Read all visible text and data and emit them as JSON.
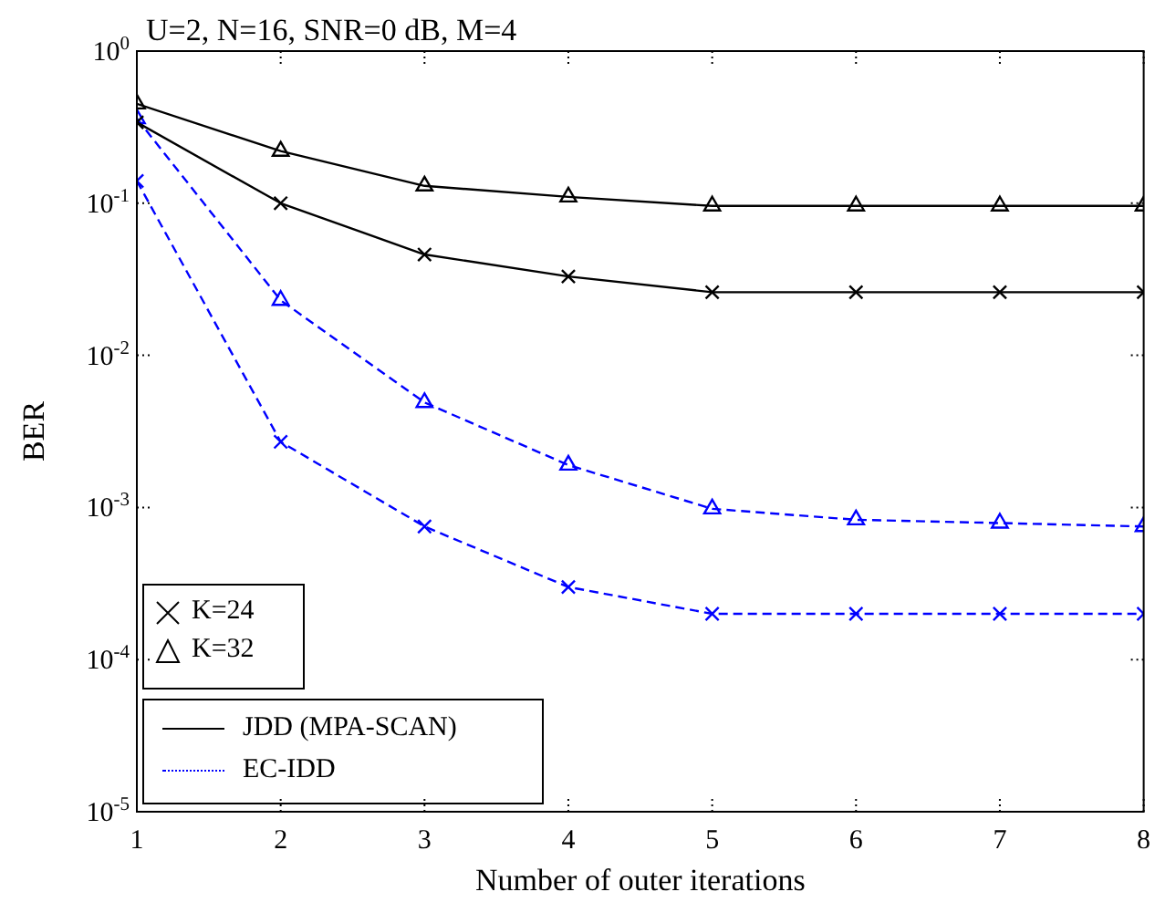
{
  "chart_data": {
    "type": "line",
    "title": "U=2, N=16, SNR=0 dB, M=4",
    "xlabel": "Number of outer iterations",
    "ylabel": "BER",
    "x": [
      1,
      2,
      3,
      4,
      5,
      6,
      7,
      8
    ],
    "series": [
      {
        "color": "#000000",
        "marker": "cross",
        "line_style": "solid",
        "values": [
          0.34,
          0.1,
          0.046,
          0.033,
          0.026,
          0.026,
          0.026,
          0.026
        ]
      },
      {
        "color": "#000000",
        "marker": "triangle",
        "line_style": "solid",
        "values": [
          0.45,
          0.22,
          0.13,
          0.11,
          0.096,
          0.096,
          0.096,
          0.096
        ]
      },
      {
        "color": "#0000ff",
        "marker": "cross",
        "line_style": "dashed",
        "values": [
          0.14,
          0.0027,
          0.00075,
          0.0003,
          0.0002,
          0.0002,
          0.0002,
          0.0002
        ]
      },
      {
        "color": "#0000ff",
        "marker": "triangle",
        "line_style": "dashed",
        "values": [
          0.36,
          0.023,
          0.0049,
          0.0019,
          0.00098,
          0.00083,
          0.00079,
          0.00075
        ]
      }
    ],
    "annotations": [
      "K=24",
      "K=32",
      "JDD (MPA-SCAN)",
      "EC-IDD"
    ],
    "log": "y",
    "grid": false,
    "xlim": [
      1,
      8
    ],
    "xticks": [
      1,
      2,
      3,
      4,
      5,
      6,
      7,
      8
    ],
    "ylim": [
      1e-05,
      1
    ],
    "yticks": [
      {
        "value": 1,
        "label": "10$^{0}$"
      },
      {
        "value": 0.1,
        "label": "10$^{-1}$"
      },
      {
        "value": 0.01,
        "label": "10$^{-2}$"
      },
      {
        "value": 0.001,
        "label": "10$^{-3}$"
      },
      {
        "value": 0.0001,
        "label": "10$^{-4}$"
      },
      {
        "value": 1e-05,
        "label": "10$^{-5}$"
      }
    ]
  }
}
